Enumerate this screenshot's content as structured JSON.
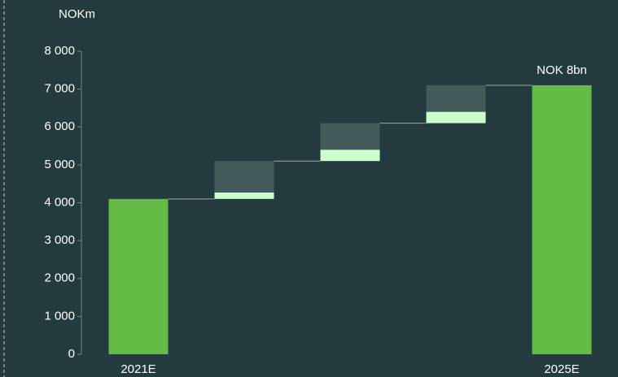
{
  "chart_data": {
    "type": "waterfall",
    "y_label": "NOKm",
    "annotation": "NOK 8bn",
    "categories": [
      "2021E",
      null,
      null,
      null,
      "2025E"
    ],
    "series": [
      {
        "color": "#63bb46",
        "values": [
          4100,
          null,
          null,
          null,
          7100
        ]
      },
      {
        "color": "#ccffcc",
        "values": [
          null,
          170,
          300,
          300,
          null
        ]
      },
      {
        "color": "#435a5a",
        "values": [
          null,
          830,
          700,
          700,
          null
        ]
      }
    ],
    "ylim": [
      0,
      8000
    ],
    "yticks": [
      0,
      {
        "value": 1000,
        "label": "1 000"
      },
      {
        "value": 2000,
        "label": "2 000"
      },
      {
        "value": 3000,
        "label": "3 000"
      },
      {
        "value": 4000,
        "label": "4 000"
      },
      {
        "value": 5000,
        "label": "5 000"
      },
      {
        "value": 6000,
        "label": "6 000"
      },
      {
        "value": 7000,
        "label": "7 000"
      },
      {
        "value": 8000,
        "label": "8 000"
      }
    ]
  }
}
